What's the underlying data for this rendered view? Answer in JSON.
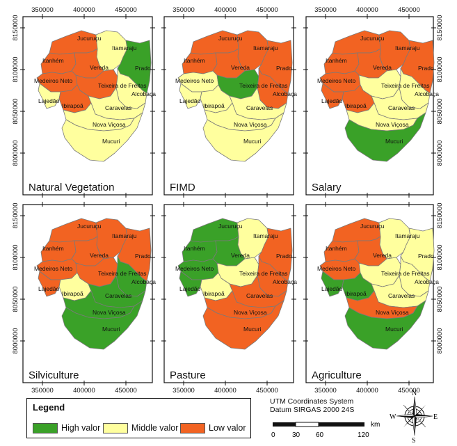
{
  "colors": {
    "high": "#3aa128",
    "middle": "#ffff9e",
    "low": "#f26322",
    "border": "#7a7a7a"
  },
  "axis": {
    "x_ticks": [
      "350000",
      "400000",
      "450000"
    ],
    "y_ticks": [
      "8150000",
      "8100000",
      "8050000",
      "8000000"
    ]
  },
  "municipalities": [
    "Jucuruçu",
    "Itamaraju",
    "Prado",
    "Itanhém",
    "Vereda",
    "Medeiros Neto",
    "Teixeira de Freitas",
    "Alcobaça",
    "Lajedão",
    "Ibirapoã",
    "Caravelas",
    "Nova Viçosa",
    "Mucuri"
  ],
  "panels": [
    {
      "title": "Natural Vegetation",
      "classes": [
        "low",
        "middle",
        "high",
        "low",
        "low",
        "low",
        "low",
        "middle",
        "middle",
        "low",
        "middle",
        "middle",
        "middle"
      ]
    },
    {
      "title": "FIMD",
      "classes": [
        "low",
        "low",
        "low",
        "low",
        "low",
        "middle",
        "high",
        "low",
        "middle",
        "middle",
        "middle",
        "middle",
        "middle"
      ]
    },
    {
      "title": "Salary",
      "classes": [
        "low",
        "low",
        "low",
        "low",
        "low",
        "low",
        "middle",
        "middle",
        "low",
        "low",
        "middle",
        "middle",
        "high"
      ]
    },
    {
      "title": "Silviculture",
      "classes": [
        "low",
        "low",
        "low",
        "low",
        "low",
        "low",
        "low",
        "high",
        "low",
        "middle",
        "high",
        "high",
        "high"
      ]
    },
    {
      "title": "Pasture",
      "classes": [
        "high",
        "middle",
        "low",
        "high",
        "high",
        "high",
        "middle",
        "low",
        "high",
        "middle",
        "low",
        "low",
        "low"
      ]
    },
    {
      "title": "Agriculture",
      "classes": [
        "low",
        "middle",
        "middle",
        "low",
        "low",
        "low",
        "middle",
        "middle",
        "high",
        "high",
        "middle",
        "low",
        "high"
      ]
    }
  ],
  "legend": {
    "title": "Legend",
    "items": [
      {
        "key": "high",
        "label": "High valor"
      },
      {
        "key": "middle",
        "label": "Middle valor"
      },
      {
        "key": "low",
        "label": "Low valor"
      }
    ]
  },
  "crs": {
    "line1": "UTM Coordinates System",
    "line2": "Datum SIRGAS 2000 24S"
  },
  "scale": {
    "unit": "km",
    "labels": [
      "0",
      "30",
      "60",
      "120"
    ]
  },
  "north_arrow": {
    "n": "N",
    "s": "S",
    "e": "E",
    "w": "W"
  }
}
